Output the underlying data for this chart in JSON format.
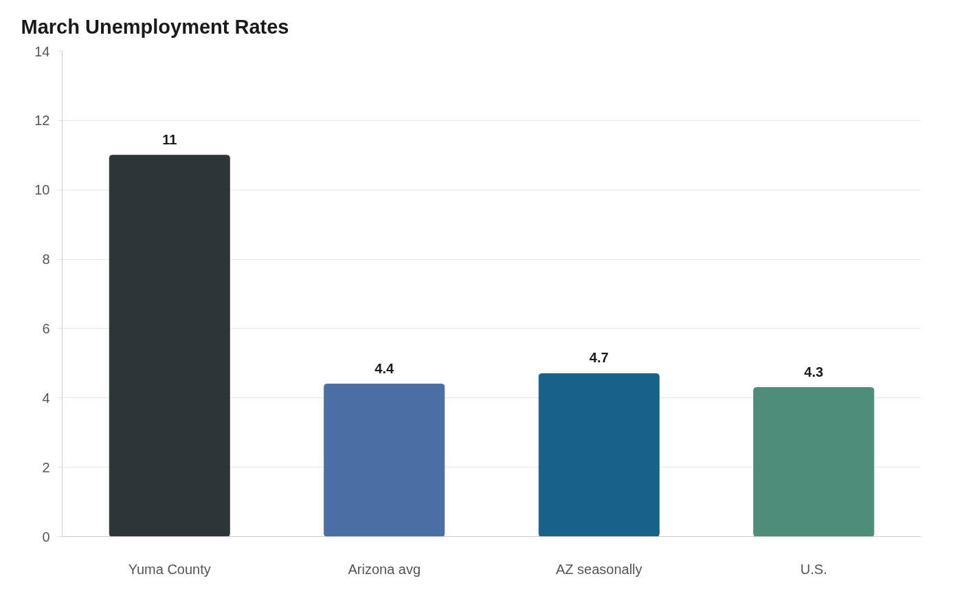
{
  "chart_data": {
    "type": "bar",
    "title": "March Unemployment Rates",
    "categories": [
      "Yuma County",
      "Arizona avg",
      "AZ seasonally",
      "U.S."
    ],
    "values": [
      11,
      4.4,
      4.7,
      4.3
    ],
    "colors": [
      "#2d3538",
      "#4a6fa5",
      "#17628a",
      "#4e8d7a"
    ],
    "ylim": [
      0,
      14
    ],
    "yticks": [
      0,
      2,
      4,
      6,
      8,
      10,
      12,
      14
    ],
    "grid": "y",
    "data_labels": true
  }
}
